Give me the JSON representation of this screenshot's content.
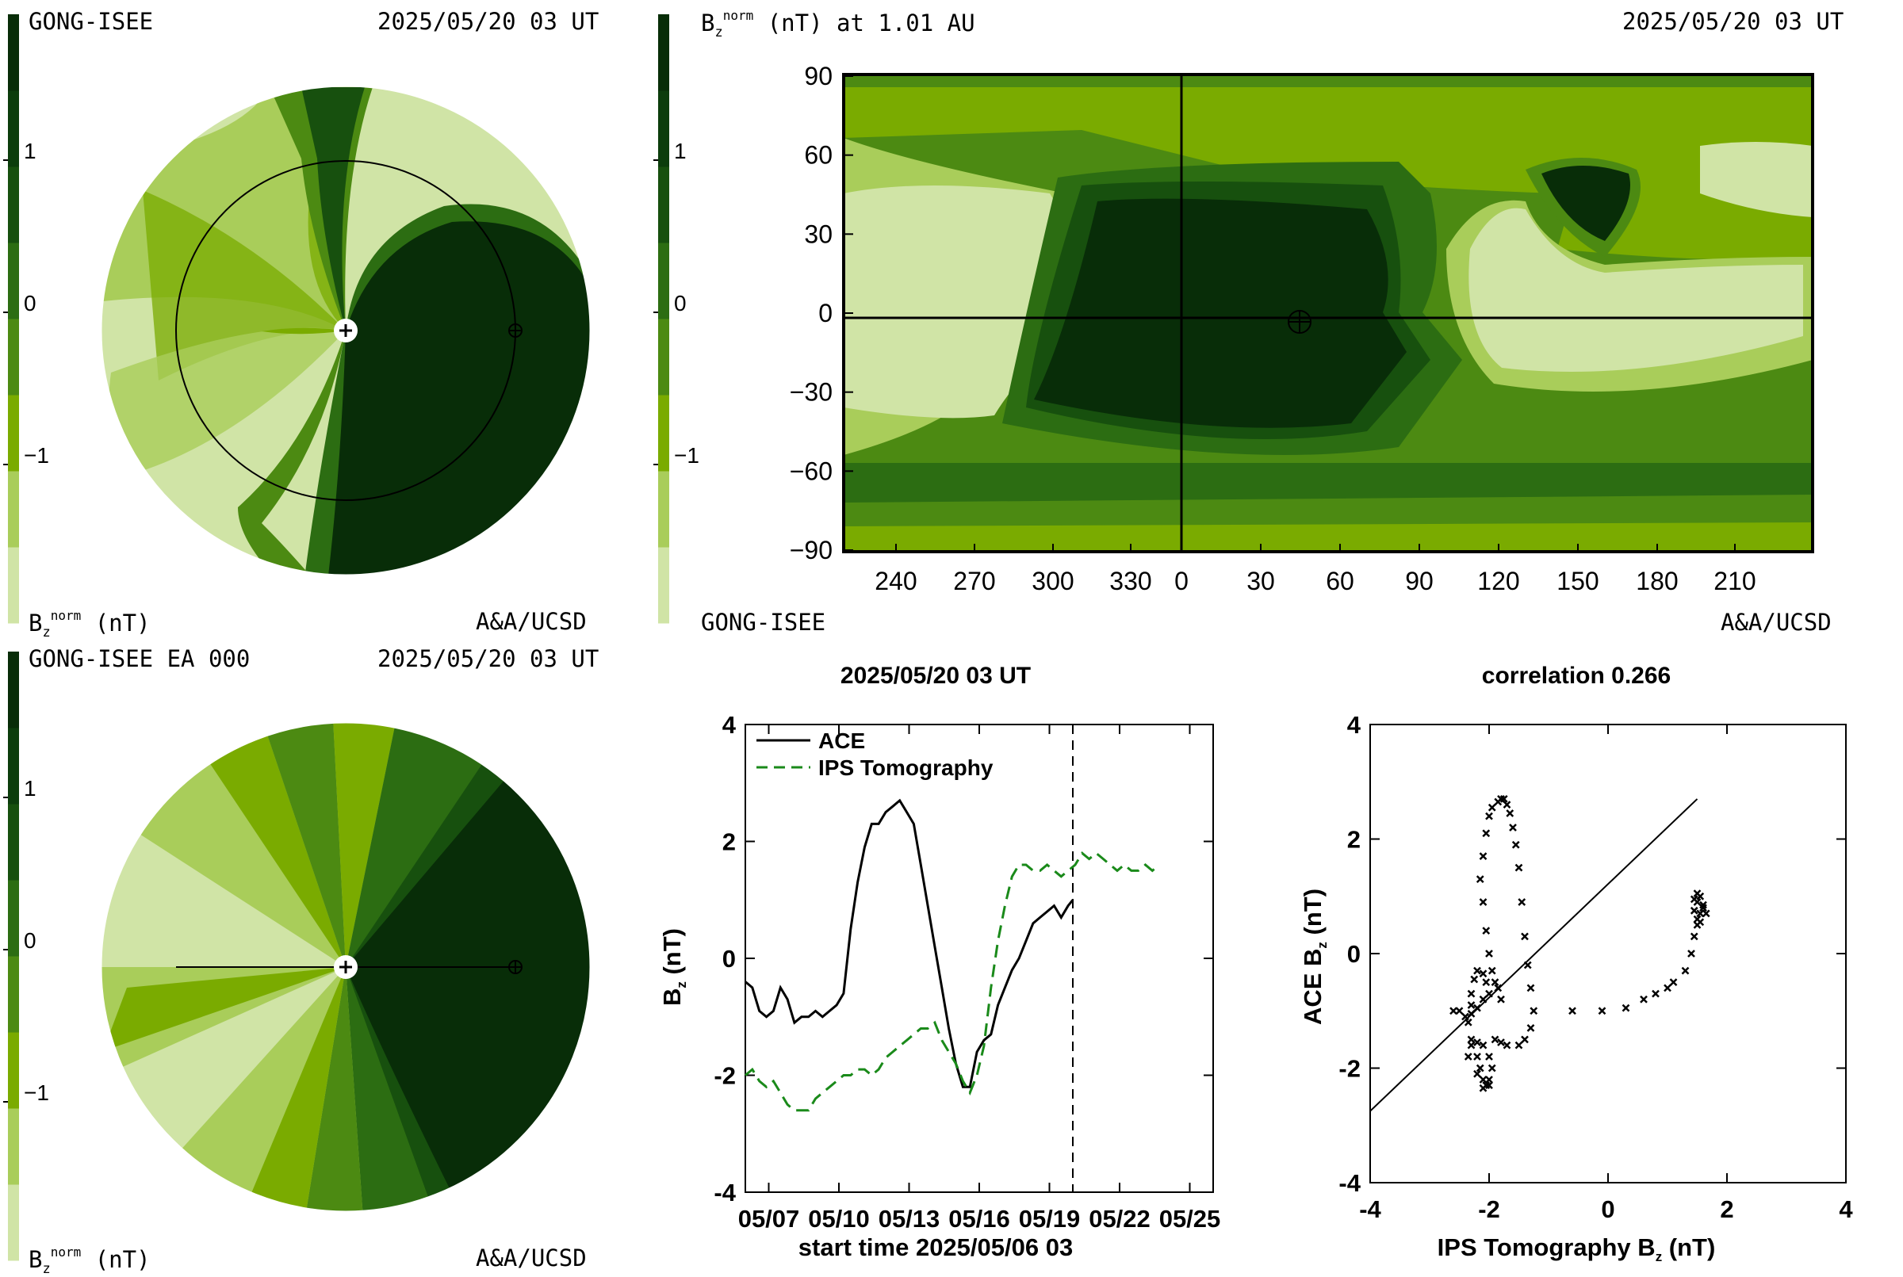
{
  "colors": {
    "levels": [
      "#d0e4a6",
      "#a9cd5a",
      "#7aab00",
      "#4c8a12",
      "#2c6d12",
      "#17500e",
      "#0c3d0c",
      "#082d08"
    ],
    "ips_line": "#1a8a1a",
    "ace_line": "#000000"
  },
  "colorbar": {
    "ticks": [
      "1",
      "0",
      "−1"
    ]
  },
  "panel_tl": {
    "source": "GONG-ISEE",
    "date": "2025/05/20 03 UT",
    "unit_base": "B",
    "unit_sub": "z",
    "unit_sup": "norm",
    "unit_rest": " (nT)",
    "credit": "A&A/UCSD"
  },
  "panel_tr": {
    "title_base": "B",
    "title_sub": "z",
    "title_sup": "norm",
    "title_rest": " (nT) at 1.01 AU",
    "date": "2025/05/20 03 UT",
    "source": "GONG-ISEE",
    "credit": "A&A/UCSD"
  },
  "panel_bl": {
    "source": "GONG-ISEE EA 000",
    "date": "2025/05/20 03 UT",
    "unit_base": "B",
    "unit_sub": "z",
    "unit_sup": "norm",
    "unit_rest": " (nT)",
    "credit": "A&A/UCSD"
  },
  "chart_data": [
    {
      "type": "heatmap",
      "title": "Bz norm (nT) at 1.01 AU",
      "x_tick_labels": [
        "240",
        "270",
        "300",
        "330",
        "0",
        "30",
        "60",
        "90",
        "120",
        "150",
        "180",
        "210"
      ],
      "y_tick_labels": [
        "90",
        "60",
        "30",
        "0",
        "−30",
        "−60",
        "−90"
      ],
      "ylim": [
        -90,
        90
      ],
      "earth_position": {
        "lon": 43,
        "lat": -2
      }
    },
    {
      "type": "line",
      "title": "2025/05/20 03 UT",
      "xlabel": "start time 2025/05/06 03",
      "ylabel_base": "B",
      "ylabel_sub": "z",
      "ylabel_rest": " (nT)",
      "x_tick_labels": [
        "05/07",
        "05/10",
        "05/13",
        "05/16",
        "05/19",
        "05/22",
        "05/25"
      ],
      "x_tick_days": [
        1,
        4,
        7,
        10,
        13,
        16,
        19
      ],
      "xlim_days": [
        0,
        20
      ],
      "ylim": [
        -4,
        4
      ],
      "y_tick_labels": [
        "4",
        "2",
        "0",
        "-2",
        "-4"
      ],
      "y_ticks": [
        4,
        2,
        0,
        -2,
        -4
      ],
      "current_time_day": 14,
      "series": [
        {
          "name": "ACE",
          "style": "solid",
          "points": [
            [
              0.0,
              -0.4
            ],
            [
              0.3,
              -0.5
            ],
            [
              0.6,
              -0.9
            ],
            [
              0.9,
              -1.0
            ],
            [
              1.2,
              -0.9
            ],
            [
              1.5,
              -0.5
            ],
            [
              1.8,
              -0.7
            ],
            [
              2.1,
              -1.1
            ],
            [
              2.4,
              -1.0
            ],
            [
              2.7,
              -1.0
            ],
            [
              3.0,
              -0.9
            ],
            [
              3.3,
              -1.0
            ],
            [
              3.6,
              -0.9
            ],
            [
              3.9,
              -0.8
            ],
            [
              4.2,
              -0.6
            ],
            [
              4.5,
              0.5
            ],
            [
              4.8,
              1.3
            ],
            [
              5.1,
              1.9
            ],
            [
              5.4,
              2.3
            ],
            [
              5.7,
              2.3
            ],
            [
              6.0,
              2.5
            ],
            [
              6.3,
              2.6
            ],
            [
              6.6,
              2.7
            ],
            [
              6.9,
              2.5
            ],
            [
              7.2,
              2.3
            ],
            [
              7.5,
              1.6
            ],
            [
              7.8,
              0.9
            ],
            [
              8.1,
              0.2
            ],
            [
              8.4,
              -0.5
            ],
            [
              8.7,
              -1.2
            ],
            [
              9.0,
              -1.8
            ],
            [
              9.3,
              -2.2
            ],
            [
              9.6,
              -2.2
            ],
            [
              9.9,
              -1.6
            ],
            [
              10.2,
              -1.4
            ],
            [
              10.5,
              -1.3
            ],
            [
              10.8,
              -0.8
            ],
            [
              11.1,
              -0.5
            ],
            [
              11.4,
              -0.2
            ],
            [
              11.7,
              0.0
            ],
            [
              12.0,
              0.3
            ],
            [
              12.3,
              0.6
            ],
            [
              12.6,
              0.7
            ],
            [
              12.9,
              0.8
            ],
            [
              13.2,
              0.9
            ],
            [
              13.5,
              0.7
            ],
            [
              13.8,
              0.9
            ],
            [
              14.0,
              1.0
            ]
          ]
        },
        {
          "name": "IPS Tomography",
          "style": "dashed",
          "points": [
            [
              0.0,
              -2.0
            ],
            [
              0.3,
              -1.9
            ],
            [
              0.6,
              -2.1
            ],
            [
              0.9,
              -2.2
            ],
            [
              1.2,
              -2.1
            ],
            [
              1.5,
              -2.3
            ],
            [
              1.8,
              -2.5
            ],
            [
              2.1,
              -2.6
            ],
            [
              2.4,
              -2.6
            ],
            [
              2.7,
              -2.6
            ],
            [
              3.0,
              -2.4
            ],
            [
              3.3,
              -2.3
            ],
            [
              3.6,
              -2.2
            ],
            [
              3.9,
              -2.1
            ],
            [
              4.2,
              -2.0
            ],
            [
              4.5,
              -2.0
            ],
            [
              4.8,
              -1.9
            ],
            [
              5.1,
              -1.9
            ],
            [
              5.4,
              -2.0
            ],
            [
              5.7,
              -1.9
            ],
            [
              6.0,
              -1.7
            ],
            [
              6.3,
              -1.6
            ],
            [
              6.6,
              -1.5
            ],
            [
              6.9,
              -1.4
            ],
            [
              7.2,
              -1.3
            ],
            [
              7.5,
              -1.2
            ],
            [
              7.8,
              -1.2
            ],
            [
              8.1,
              -1.1
            ],
            [
              8.4,
              -1.4
            ],
            [
              8.7,
              -1.6
            ],
            [
              9.0,
              -1.8
            ],
            [
              9.3,
              -2.1
            ],
            [
              9.6,
              -2.3
            ],
            [
              9.9,
              -2.0
            ],
            [
              10.2,
              -1.5
            ],
            [
              10.5,
              -0.5
            ],
            [
              10.8,
              0.3
            ],
            [
              11.1,
              0.9
            ],
            [
              11.4,
              1.4
            ],
            [
              11.7,
              1.6
            ],
            [
              12.0,
              1.6
            ],
            [
              12.3,
              1.5
            ],
            [
              12.6,
              1.5
            ],
            [
              12.9,
              1.6
            ],
            [
              13.2,
              1.5
            ],
            [
              13.5,
              1.4
            ],
            [
              13.8,
              1.5
            ],
            [
              14.1,
              1.6
            ],
            [
              14.4,
              1.8
            ],
            [
              14.7,
              1.7
            ],
            [
              15.0,
              1.8
            ],
            [
              15.3,
              1.7
            ],
            [
              15.6,
              1.6
            ],
            [
              15.9,
              1.5
            ],
            [
              16.2,
              1.6
            ],
            [
              16.5,
              1.5
            ],
            [
              16.8,
              1.5
            ],
            [
              17.1,
              1.6
            ],
            [
              17.4,
              1.5
            ],
            [
              17.7,
              1.6
            ]
          ]
        }
      ]
    },
    {
      "type": "scatter",
      "title": "correlation 0.266",
      "xlabel_base": "IPS Tomography B",
      "xlabel_sub": "z",
      "xlabel_rest": " (nT)",
      "ylabel_base": "ACE B",
      "ylabel_sub": "z",
      "ylabel_rest": " (nT)",
      "xlim": [
        -4,
        4
      ],
      "ylim": [
        -4,
        4
      ],
      "x_tick_labels": [
        "-4",
        "-2",
        "0",
        "2",
        "4"
      ],
      "x_ticks": [
        -4,
        -2,
        0,
        2,
        4
      ],
      "y_tick_labels": [
        "4",
        "2",
        "0",
        "-2",
        "-4"
      ],
      "y_ticks": [
        4,
        2,
        0,
        -2,
        -4
      ],
      "fit_line": [
        [
          -4.0,
          -2.75
        ],
        [
          1.5,
          2.7
        ]
      ],
      "points": [
        [
          -2.6,
          -1.0
        ],
        [
          -2.5,
          -1.0
        ],
        [
          -2.4,
          -1.1
        ],
        [
          -2.3,
          -1.05
        ],
        [
          -2.2,
          -0.95
        ],
        [
          -2.1,
          -0.8
        ],
        [
          -2.0,
          -0.7
        ],
        [
          -2.05,
          -0.5
        ],
        [
          -2.1,
          -0.35
        ],
        [
          -2.2,
          -0.3
        ],
        [
          -2.25,
          -0.45
        ],
        [
          -2.3,
          -0.7
        ],
        [
          -2.3,
          -0.9
        ],
        [
          -2.35,
          -1.2
        ],
        [
          -2.3,
          -1.5
        ],
        [
          -2.2,
          -1.8
        ],
        [
          -2.15,
          -2.0
        ],
        [
          -2.1,
          -2.2
        ],
        [
          -2.05,
          -2.3
        ],
        [
          -2.0,
          -2.2
        ],
        [
          -1.95,
          -2.0
        ],
        [
          -2.0,
          -1.8
        ],
        [
          -2.1,
          -1.6
        ],
        [
          -2.2,
          -1.55
        ],
        [
          -2.3,
          -1.6
        ],
        [
          -2.35,
          -1.8
        ],
        [
          -2.2,
          -2.1
        ],
        [
          -2.1,
          -2.35
        ],
        [
          -2.0,
          -2.3
        ],
        [
          -1.9,
          -1.5
        ],
        [
          -1.8,
          -1.55
        ],
        [
          -1.7,
          -1.6
        ],
        [
          -1.5,
          -1.6
        ],
        [
          -1.4,
          -1.5
        ],
        [
          -1.3,
          -1.3
        ],
        [
          -1.25,
          -1.0
        ],
        [
          -1.3,
          -0.6
        ],
        [
          -1.35,
          -0.2
        ],
        [
          -1.4,
          0.3
        ],
        [
          -1.45,
          0.9
        ],
        [
          -1.5,
          1.5
        ],
        [
          -1.55,
          1.9
        ],
        [
          -1.6,
          2.2
        ],
        [
          -1.65,
          2.45
        ],
        [
          -1.7,
          2.6
        ],
        [
          -1.75,
          2.7
        ],
        [
          -1.8,
          2.7
        ],
        [
          -1.85,
          2.65
        ],
        [
          -1.95,
          2.55
        ],
        [
          -2.0,
          2.4
        ],
        [
          -2.05,
          2.1
        ],
        [
          -2.1,
          1.7
        ],
        [
          -2.15,
          1.3
        ],
        [
          -2.1,
          0.9
        ],
        [
          -2.05,
          0.4
        ],
        [
          -2.0,
          0.0
        ],
        [
          -1.95,
          -0.3
        ],
        [
          -1.9,
          -0.5
        ],
        [
          -1.85,
          -0.6
        ],
        [
          -1.8,
          -0.8
        ],
        [
          -0.6,
          -1.0
        ],
        [
          -0.1,
          -1.0
        ],
        [
          0.3,
          -0.95
        ],
        [
          0.6,
          -0.8
        ],
        [
          0.8,
          -0.7
        ],
        [
          1.0,
          -0.6
        ],
        [
          1.1,
          -0.5
        ],
        [
          1.3,
          -0.3
        ],
        [
          1.4,
          0.0
        ],
        [
          1.45,
          0.3
        ],
        [
          1.5,
          0.5
        ],
        [
          1.55,
          0.7
        ],
        [
          1.6,
          0.8
        ],
        [
          1.55,
          1.0
        ],
        [
          1.5,
          0.9
        ],
        [
          1.45,
          0.75
        ],
        [
          1.5,
          0.6
        ],
        [
          1.6,
          0.85
        ],
        [
          1.65,
          0.7
        ],
        [
          1.5,
          1.05
        ],
        [
          1.55,
          0.55
        ],
        [
          1.45,
          0.95
        ]
      ]
    }
  ]
}
